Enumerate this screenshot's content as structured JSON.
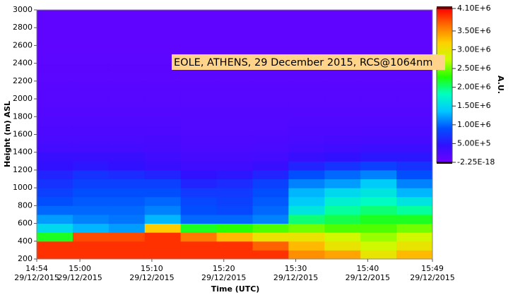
{
  "chart_data": {
    "type": "heatmap",
    "annotation": "EOLE, ATHENS, 29 December 2015, RCS@1064nm",
    "xlabel": "Time (UTC)",
    "ylabel": "Height (m) ASL",
    "colorbar_label": "A.U.",
    "x": [
      "2015-12-29T14:54",
      "2015-12-29T14:59",
      "2015-12-29T15:04",
      "2015-12-29T15:09",
      "2015-12-29T15:14",
      "2015-12-29T15:19",
      "2015-12-29T15:24",
      "2015-12-29T15:29",
      "2015-12-29T15:34",
      "2015-12-29T15:39",
      "2015-12-29T15:44"
    ],
    "y": [
      200,
      300,
      400,
      500,
      600,
      700,
      800,
      900,
      1000,
      1100,
      1200,
      1300,
      1400,
      1500,
      1600,
      1700,
      1800,
      1900,
      2000,
      2100,
      2200,
      2300,
      2400,
      2500,
      2600,
      2700,
      2800,
      2900
    ],
    "values": [
      [
        3900000.0,
        3900000.0,
        2200000.0,
        1500000.0,
        1200000.0,
        1000000.0,
        900000.0,
        800000.0,
        700000.0,
        600000.0,
        450000.0,
        400000.0,
        320000.0,
        280000.0,
        250000.0,
        220000.0,
        200000.0,
        190000.0,
        180000.0,
        170000.0,
        160000.0,
        150000.0,
        140000.0,
        130000.0,
        130000.0,
        120000.0,
        120000.0,
        110000.0
      ],
      [
        3900000.0,
        3900000.0,
        3800000.0,
        1300000.0,
        1100000.0,
        1000000.0,
        950000.0,
        900000.0,
        800000.0,
        700000.0,
        500000.0,
        400000.0,
        320000.0,
        280000.0,
        250000.0,
        220000.0,
        200000.0,
        190000.0,
        180000.0,
        170000.0,
        160000.0,
        150000.0,
        140000.0,
        130000.0,
        130000.0,
        120000.0,
        120000.0,
        110000.0
      ],
      [
        3900000.0,
        3900000.0,
        3800000.0,
        1200000.0,
        1050000.0,
        1000000.0,
        950000.0,
        900000.0,
        800000.0,
        650000.0,
        450000.0,
        400000.0,
        320000.0,
        280000.0,
        250000.0,
        220000.0,
        200000.0,
        190000.0,
        180000.0,
        170000.0,
        160000.0,
        150000.0,
        140000.0,
        130000.0,
        130000.0,
        120000.0,
        120000.0,
        110000.0
      ],
      [
        3900000.0,
        3900000.0,
        3900000.0,
        3200000.0,
        1300000.0,
        1100000.0,
        1000000.0,
        900000.0,
        800000.0,
        600000.0,
        400000.0,
        350000.0,
        300000.0,
        270000.0,
        240000.0,
        220000.0,
        200000.0,
        190000.0,
        180000.0,
        170000.0,
        160000.0,
        150000.0,
        140000.0,
        130000.0,
        130000.0,
        120000.0,
        120000.0,
        110000.0
      ],
      [
        3900000.0,
        3900000.0,
        3600000.0,
        2200000.0,
        1000000.0,
        900000.0,
        850000.0,
        750000.0,
        600000.0,
        450000.0,
        350000.0,
        300000.0,
        260000.0,
        240000.0,
        220000.0,
        210000.0,
        200000.0,
        190000.0,
        180000.0,
        170000.0,
        160000.0,
        150000.0,
        140000.0,
        130000.0,
        130000.0,
        120000.0,
        120000.0,
        110000.0
      ],
      [
        3900000.0,
        3900000.0,
        3300000.0,
        2300000.0,
        1000000.0,
        850000.0,
        800000.0,
        750000.0,
        650000.0,
        500000.0,
        350000.0,
        300000.0,
        260000.0,
        240000.0,
        220000.0,
        210000.0,
        200000.0,
        190000.0,
        180000.0,
        170000.0,
        160000.0,
        150000.0,
        140000.0,
        130000.0,
        130000.0,
        120000.0,
        120000.0,
        110000.0
      ],
      [
        3900000.0,
        3700000.0,
        3000000.0,
        2400000.0,
        1100000.0,
        1000000.0,
        950000.0,
        900000.0,
        800000.0,
        600000.0,
        400000.0,
        320000.0,
        280000.0,
        250000.0,
        220000.0,
        210000.0,
        200000.0,
        190000.0,
        180000.0,
        170000.0,
        160000.0,
        150000.0,
        140000.0,
        130000.0,
        130000.0,
        120000.0,
        120000.0,
        110000.0
      ],
      [
        3500000.0,
        3300000.0,
        3000000.0,
        2500000.0,
        2000000.0,
        1600000.0,
        1400000.0,
        1300000.0,
        1100000.0,
        900000.0,
        600000.0,
        400000.0,
        320000.0,
        280000.0,
        250000.0,
        220000.0,
        200000.0,
        190000.0,
        180000.0,
        170000.0,
        160000.0,
        150000.0,
        140000.0,
        130000.0,
        130000.0,
        120000.0,
        120000.0,
        110000.0
      ],
      [
        3400000.0,
        3000000.0,
        2800000.0,
        2400000.0,
        2100000.0,
        1900000.0,
        1700000.0,
        1500000.0,
        1200000.0,
        1000000.0,
        700000.0,
        450000.0,
        340000.0,
        290000.0,
        250000.0,
        220000.0,
        200000.0,
        190000.0,
        180000.0,
        170000.0,
        160000.0,
        150000.0,
        140000.0,
        130000.0,
        130000.0,
        120000.0,
        120000.0,
        110000.0
      ],
      [
        3000000.0,
        2800000.0,
        2600000.0,
        2400000.0,
        2200000.0,
        2000000.0,
        1800000.0,
        1600000.0,
        1400000.0,
        1100000.0,
        800000.0,
        500000.0,
        360000.0,
        300000.0,
        260000.0,
        230000.0,
        200000.0,
        190000.0,
        180000.0,
        170000.0,
        160000.0,
        150000.0,
        140000.0,
        130000.0,
        130000.0,
        120000.0,
        120000.0,
        110000.0
      ],
      [
        3300000.0,
        3000000.0,
        2800000.0,
        2500000.0,
        2200000.0,
        1900000.0,
        1600000.0,
        1300000.0,
        1100000.0,
        900000.0,
        700000.0,
        500000.0,
        360000.0,
        300000.0,
        260000.0,
        230000.0,
        200000.0,
        190000.0,
        180000.0,
        170000.0,
        160000.0,
        150000.0,
        140000.0,
        130000.0,
        130000.0,
        120000.0,
        120000.0,
        110000.0
      ]
    ],
    "xlim": [
      "2015-12-29T14:54",
      "2015-12-29T15:49"
    ],
    "xticks": [
      {
        "value": "2015-12-29T14:54",
        "label": [
          "14:54",
          "29/12/2015"
        ]
      },
      {
        "value": "2015-12-29T15:00",
        "label": [
          "15:00",
          "29/12/2015"
        ]
      },
      {
        "value": "2015-12-29T15:10",
        "label": [
          "15:10",
          "29/12/2015"
        ]
      },
      {
        "value": "2015-12-29T15:20",
        "label": [
          "15:20",
          "29/12/2015"
        ]
      },
      {
        "value": "2015-12-29T15:30",
        "label": [
          "15:30",
          "29/12/2015"
        ]
      },
      {
        "value": "2015-12-29T15:40",
        "label": [
          "15:40",
          "29/12/2015"
        ]
      },
      {
        "value": "2015-12-29T15:49",
        "label": [
          "15:49",
          "29/12/2015"
        ]
      }
    ],
    "ylim": [
      200,
      3000
    ],
    "yticks": [
      200,
      400,
      600,
      800,
      1000,
      1200,
      1400,
      1600,
      1800,
      2000,
      2200,
      2400,
      2600,
      2800,
      3000
    ],
    "zlim": [
      -2.25e-18,
      4100000
    ],
    "zticks": [
      {
        "value": 4100000,
        "label": "4.10E+6"
      },
      {
        "value": 3500000,
        "label": "3.50E+6"
      },
      {
        "value": 3000000,
        "label": "3.00E+6"
      },
      {
        "value": 2500000,
        "label": "2.50E+6"
      },
      {
        "value": 2000000,
        "label": "2.00E+6"
      },
      {
        "value": 1500000,
        "label": "1.50E+6"
      },
      {
        "value": 1000000,
        "label": "1.00E+6"
      },
      {
        "value": 500000,
        "label": "5.00E+5"
      },
      {
        "value": -2.25e-18,
        "label": "-2.25E-18"
      }
    ],
    "colormap": [
      "#7000ff",
      "#3010ff",
      "#0050ff",
      "#00c8ff",
      "#00ffc0",
      "#20ff00",
      "#c8ff00",
      "#ffd000",
      "#ff7000",
      "#ff0000"
    ],
    "grid": false
  }
}
